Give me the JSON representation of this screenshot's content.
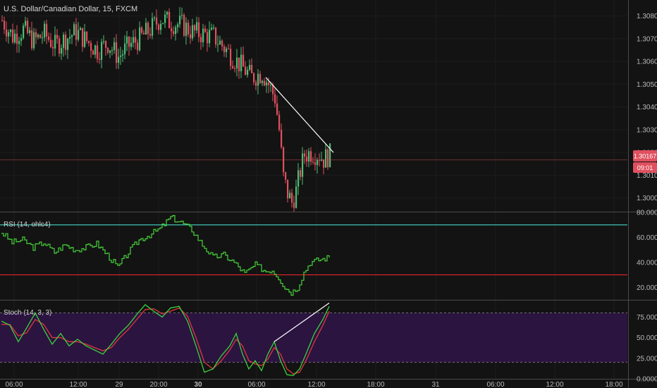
{
  "window": {
    "title": "U.S. Dollar/Canadian Dollar, 15, FXCM"
  },
  "price_badge": {
    "price": "1.30167",
    "countdown": "09:01"
  },
  "colors": {
    "background": "#131313",
    "up_candle": "#4dbd74",
    "down_candle": "#e0505f",
    "rsi_line": "#46d13a",
    "rsi_upper_band": "#3fc2b2",
    "rsi_lower_band": "#e3242b",
    "stoch_k": "#3ad13a",
    "stoch_d": "#e2353e",
    "stoch_band_fill": "#2b1440",
    "trendline": "#ffffff",
    "price_line": "#c8505a"
  },
  "chart_data": [
    {
      "type": "candlestick",
      "title": "U.S. Dollar/Canadian Dollar, 15, FXCM",
      "ylim": [
        1.2994,
        1.3087
      ],
      "y_ticks": [
        "1.30800",
        "1.30700",
        "1.30600",
        "1.30500",
        "1.30400",
        "1.30300",
        "1.30200",
        "1.30100",
        "1.30000"
      ],
      "x_ticks": [
        "06:00",
        "12:00",
        "29",
        "20:00",
        "30",
        "06:00",
        "12:00",
        "18:00",
        "31",
        "06:00",
        "12:00",
        "18:00"
      ],
      "last_price": 1.30167,
      "close_path": [
        [
          0,
          1.3078
        ],
        [
          5,
          1.3071
        ],
        [
          10,
          1.3074
        ],
        [
          15,
          1.3069
        ],
        [
          20,
          1.3072
        ],
        [
          25,
          1.3067
        ],
        [
          30,
          1.307
        ],
        [
          35,
          1.3073
        ],
        [
          40,
          1.3069
        ],
        [
          45,
          1.3065
        ],
        [
          50,
          1.3068
        ],
        [
          55,
          1.3062
        ],
        [
          60,
          1.3067
        ],
        [
          65,
          1.307
        ],
        [
          70,
          1.3074
        ],
        [
          75,
          1.3079
        ],
        [
          80,
          1.3077
        ],
        [
          85,
          1.3076
        ],
        [
          90,
          1.3073
        ],
        [
          95,
          1.3072
        ],
        [
          100,
          1.3071
        ],
        [
          103,
          1.3068
        ],
        [
          108,
          1.3063
        ],
        [
          113,
          1.3058
        ],
        [
          118,
          1.3053
        ],
        [
          123,
          1.3055
        ],
        [
          126,
          1.305
        ],
        [
          129,
          1.3044
        ],
        [
          131,
          1.303
        ],
        [
          133,
          1.3009
        ],
        [
          135,
          1.3002
        ],
        [
          137,
          1.2998
        ],
        [
          139,
          1.3003
        ],
        [
          141,
          1.3012
        ],
        [
          143,
          1.3019
        ],
        [
          146,
          1.302
        ],
        [
          150,
          1.3019
        ],
        [
          152,
          1.3017
        ],
        [
          155,
          1.3019
        ]
      ],
      "trendline": [
        [
          125,
          1.3053
        ],
        [
          157,
          1.302
        ]
      ]
    },
    {
      "type": "line",
      "title": "RSI (14, ohlc4)",
      "ylim": [
        10,
        80
      ],
      "y_ticks": [
        "80.0000",
        "60.0000",
        "40.0000",
        "20.0000"
      ],
      "bands": [
        70,
        30
      ],
      "path": [
        [
          0,
          64
        ],
        [
          5,
          56
        ],
        [
          10,
          58
        ],
        [
          15,
          52
        ],
        [
          20,
          56
        ],
        [
          25,
          48
        ],
        [
          30,
          54
        ],
        [
          35,
          50
        ],
        [
          40,
          52
        ],
        [
          45,
          55
        ],
        [
          50,
          46
        ],
        [
          55,
          36
        ],
        [
          60,
          48
        ],
        [
          65,
          58
        ],
        [
          70,
          62
        ],
        [
          75,
          67
        ],
        [
          80,
          76
        ],
        [
          85,
          72
        ],
        [
          90,
          66
        ],
        [
          95,
          54
        ],
        [
          100,
          44
        ],
        [
          105,
          46
        ],
        [
          110,
          40
        ],
        [
          115,
          31
        ],
        [
          120,
          38
        ],
        [
          125,
          33
        ],
        [
          128,
          34
        ],
        [
          131,
          28
        ],
        [
          134,
          20
        ],
        [
          137,
          16
        ],
        [
          140,
          20
        ],
        [
          143,
          32
        ],
        [
          146,
          40
        ],
        [
          150,
          42
        ],
        [
          155,
          44
        ]
      ]
    },
    {
      "type": "line",
      "title": "Stoch (14, 3, 3)",
      "ylim": [
        0,
        95
      ],
      "y_ticks": [
        "75.0000",
        "50.0000",
        "25.0000",
        "0.0000"
      ],
      "bands": [
        80,
        20
      ],
      "series": [
        {
          "values": [
            [
              0,
              70
            ],
            [
              4,
              65
            ],
            [
              8,
              45
            ],
            [
              12,
              62
            ],
            [
              16,
              80
            ],
            [
              20,
              60
            ],
            [
              24,
              42
            ],
            [
              28,
              55
            ],
            [
              32,
              40
            ],
            [
              36,
              48
            ],
            [
              40,
              40
            ],
            [
              44,
              35
            ],
            [
              48,
              30
            ],
            [
              52,
              42
            ],
            [
              56,
              55
            ],
            [
              60,
              65
            ],
            [
              64,
              78
            ],
            [
              68,
              90
            ],
            [
              72,
              82
            ],
            [
              76,
              75
            ],
            [
              80,
              86
            ],
            [
              84,
              88
            ],
            [
              88,
              70
            ],
            [
              92,
              40
            ],
            [
              96,
              8
            ],
            [
              100,
              12
            ],
            [
              104,
              28
            ],
            [
              108,
              40
            ],
            [
              111,
              55
            ],
            [
              114,
              30
            ],
            [
              117,
              12
            ],
            [
              120,
              22
            ],
            [
              123,
              10
            ],
            [
              126,
              30
            ],
            [
              129,
              45
            ],
            [
              132,
              22
            ],
            [
              135,
              5
            ],
            [
              138,
              4
            ],
            [
              141,
              12
            ],
            [
              144,
              30
            ],
            [
              148,
              55
            ],
            [
              152,
              72
            ],
            [
              155,
              88
            ]
          ]
        },
        {
          "values": [
            [
              0,
              66
            ],
            [
              4,
              66
            ],
            [
              8,
              52
            ],
            [
              12,
              56
            ],
            [
              16,
              72
            ],
            [
              20,
              66
            ],
            [
              24,
              50
            ],
            [
              28,
              50
            ],
            [
              32,
              45
            ],
            [
              36,
              45
            ],
            [
              40,
              42
            ],
            [
              44,
              38
            ],
            [
              48,
              34
            ],
            [
              52,
              38
            ],
            [
              56,
              50
            ],
            [
              60,
              60
            ],
            [
              64,
              72
            ],
            [
              68,
              84
            ],
            [
              72,
              85
            ],
            [
              76,
              79
            ],
            [
              80,
              82
            ],
            [
              84,
              86
            ],
            [
              88,
              76
            ],
            [
              92,
              50
            ],
            [
              96,
              20
            ],
            [
              100,
              12
            ],
            [
              104,
              22
            ],
            [
              108,
              35
            ],
            [
              111,
              48
            ],
            [
              114,
              40
            ],
            [
              117,
              22
            ],
            [
              120,
              18
            ],
            [
              123,
              16
            ],
            [
              126,
              24
            ],
            [
              129,
              38
            ],
            [
              132,
              30
            ],
            [
              135,
              12
            ],
            [
              138,
              6
            ],
            [
              141,
              8
            ],
            [
              144,
              22
            ],
            [
              148,
              45
            ],
            [
              152,
              65
            ],
            [
              155,
              82
            ]
          ]
        }
      ],
      "trendline": [
        [
          129,
          45
        ],
        [
          155,
          92
        ]
      ]
    }
  ]
}
